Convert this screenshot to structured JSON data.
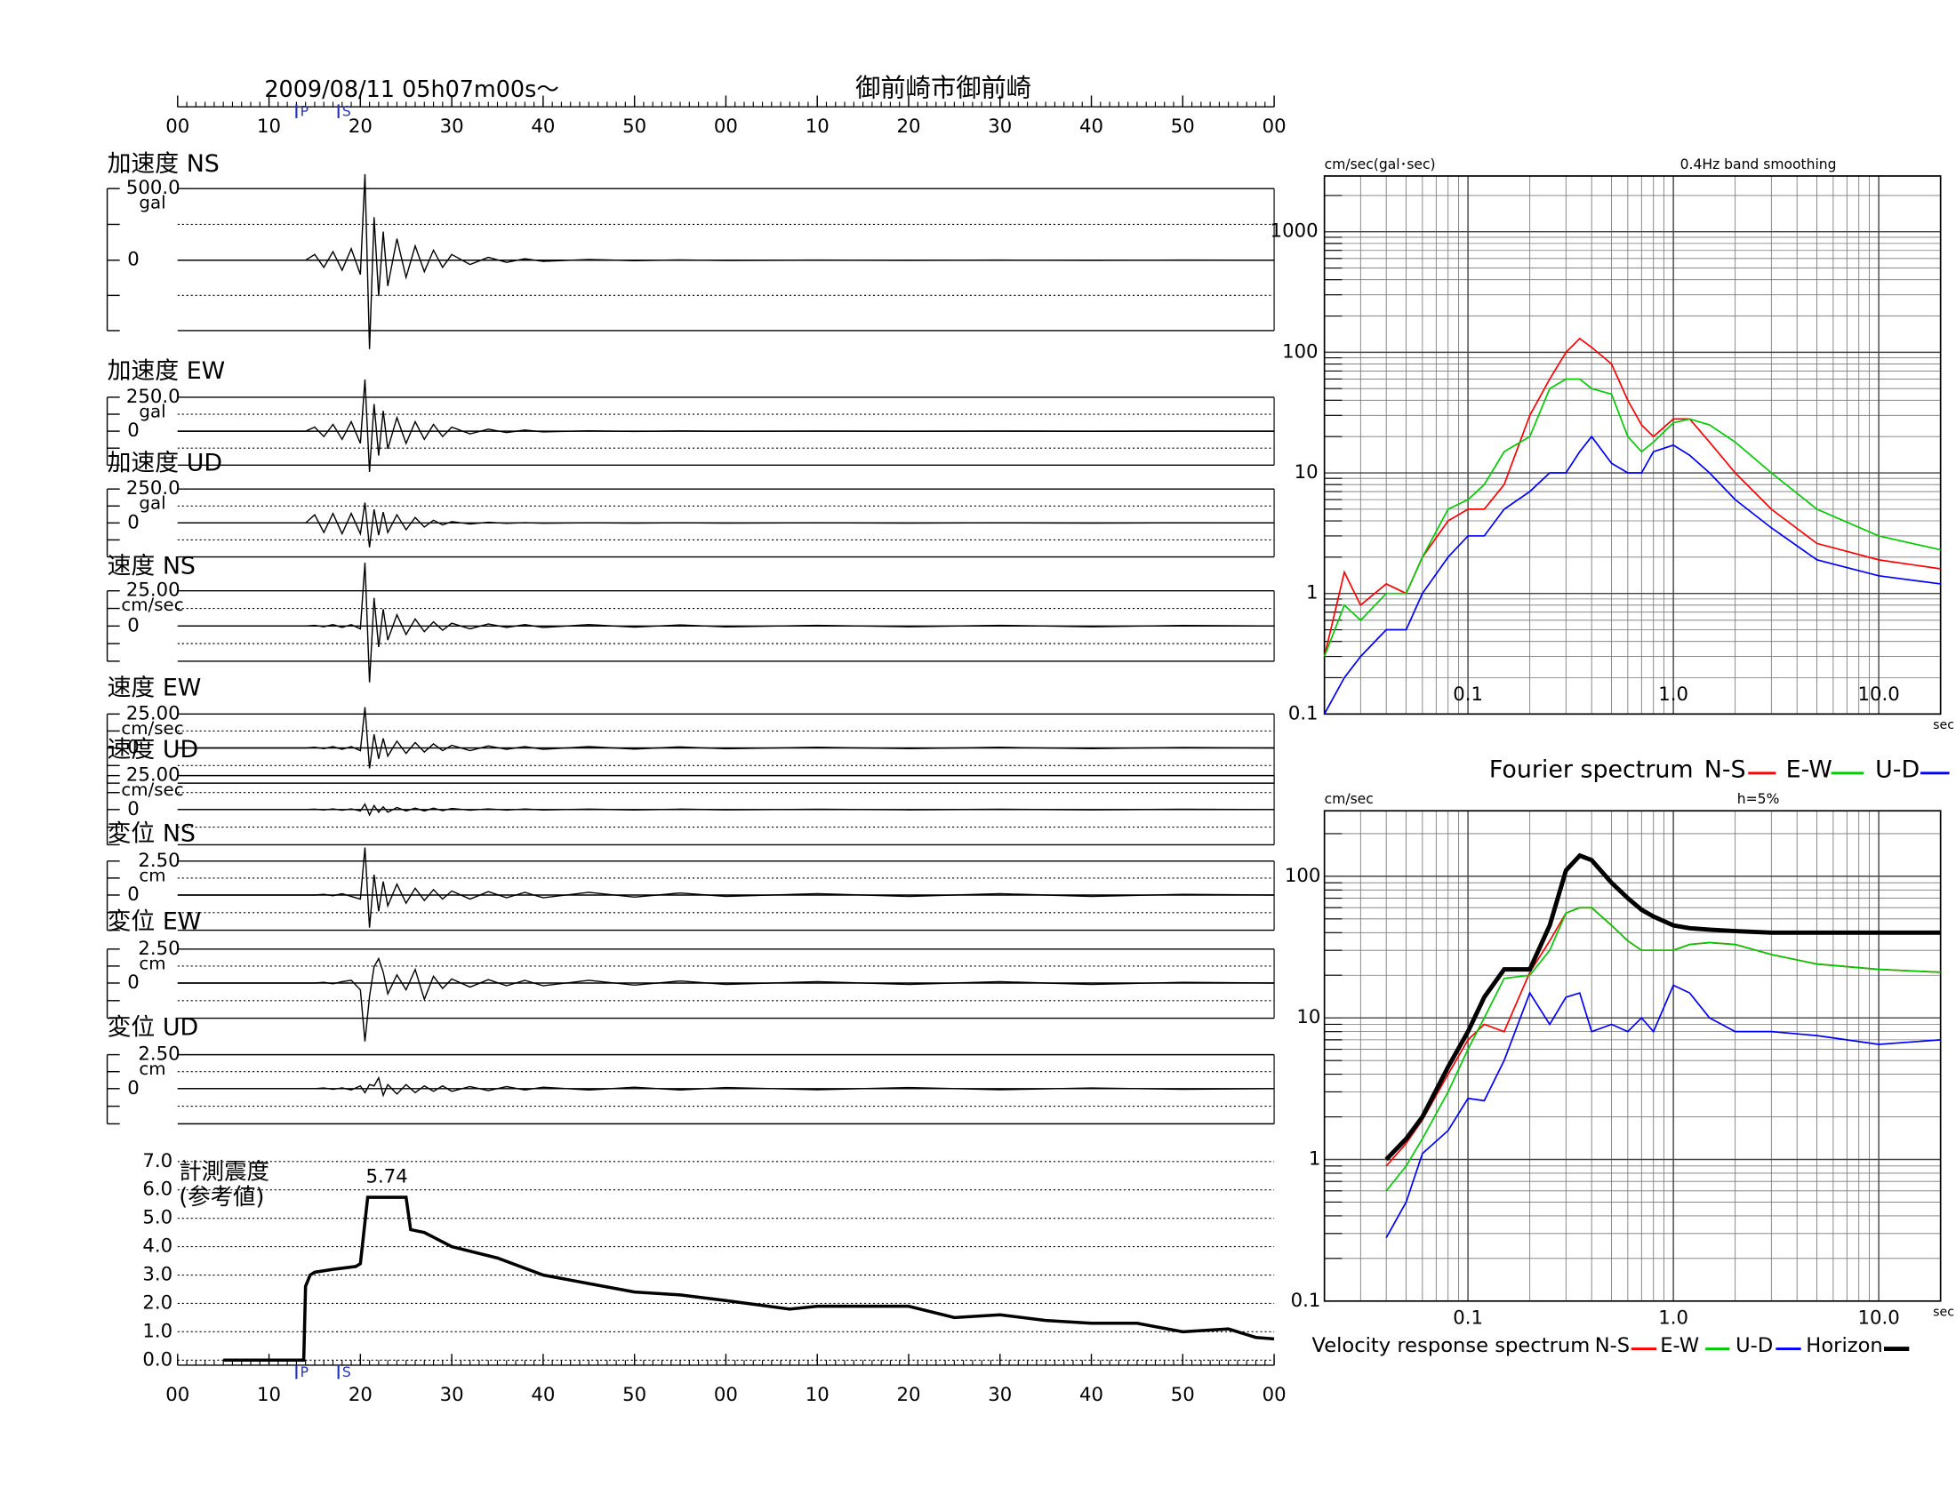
{
  "header": {
    "date": "2009/08/11  05h07m00s〜",
    "station": "御前崎市御前崎"
  },
  "chart_data": [
    {
      "type": "waveform",
      "xlim": [
        0,
        120
      ],
      "xticks": [
        {
          "value": 0,
          "label": "00"
        },
        {
          "value": 10,
          "label": "10"
        },
        {
          "value": 20,
          "label": "20"
        },
        {
          "value": 30,
          "label": "30"
        },
        {
          "value": 40,
          "label": "40"
        },
        {
          "value": 50,
          "label": "50"
        },
        {
          "value": 60,
          "label": "00"
        },
        {
          "value": 70,
          "label": "10"
        },
        {
          "value": 80,
          "label": "20"
        },
        {
          "value": 90,
          "label": "30"
        },
        {
          "value": 100,
          "label": "40"
        },
        {
          "value": 110,
          "label": "50"
        },
        {
          "value": 120,
          "label": "00"
        }
      ],
      "phases": [
        {
          "label": "P",
          "x": 13
        },
        {
          "label": "S",
          "x": 17.6
        }
      ],
      "phase_color": "#2030c0",
      "x": [
        0,
        14,
        15,
        16,
        17,
        18,
        19,
        20,
        20.5,
        21,
        21.5,
        22,
        22.5,
        23,
        24,
        25,
        26,
        27,
        28,
        29,
        30,
        32,
        34,
        36,
        38,
        40,
        45,
        50,
        55,
        60,
        70,
        80,
        90,
        100,
        110,
        120
      ],
      "series": [
        {
          "name": "加速度 NS",
          "unit": "gal",
          "color": "#000000",
          "ylim": [
            -500,
            500
          ],
          "yticks": [
            {
              "value": 500,
              "label": "500.0"
            },
            0
          ],
          "values": [
            0,
            0,
            40,
            -50,
            60,
            -70,
            80,
            -100,
            600,
            -620,
            300,
            -250,
            200,
            -180,
            150,
            -120,
            100,
            -80,
            70,
            -50,
            40,
            -30,
            20,
            -15,
            10,
            -8,
            5,
            -3,
            2,
            -2,
            1,
            -1,
            1,
            -1,
            1,
            0
          ]
        },
        {
          "name": "加速度 EW",
          "unit": "gal",
          "color": "#000000",
          "ylim": [
            -250,
            250
          ],
          "yticks": [
            {
              "value": 250,
              "label": "250.0"
            },
            0
          ],
          "values": [
            0,
            0,
            30,
            -40,
            50,
            -60,
            70,
            -90,
            380,
            -300,
            200,
            -180,
            150,
            -130,
            100,
            -90,
            70,
            -60,
            50,
            -40,
            30,
            -20,
            15,
            -10,
            8,
            -5,
            3,
            -2,
            2,
            -1,
            1,
            -1,
            1,
            -1,
            1,
            0
          ]
        },
        {
          "name": "加速度 UD",
          "unit": "gal",
          "color": "#000000",
          "ylim": [
            -250,
            250
          ],
          "yticks": [
            {
              "value": 250,
              "label": "250.0"
            },
            0
          ],
          "values": [
            0,
            0,
            60,
            -70,
            70,
            -80,
            70,
            -80,
            150,
            -180,
            100,
            -90,
            80,
            -70,
            60,
            -50,
            40,
            -30,
            20,
            -15,
            10,
            -8,
            5,
            -3,
            2,
            -2,
            1,
            -1,
            1,
            -1,
            1,
            -1,
            1,
            -1,
            1,
            0
          ]
        },
        {
          "name": "速度 NS",
          "unit": "cm/sec",
          "color": "#000000",
          "ylim": [
            -25,
            25
          ],
          "yticks": [
            {
              "value": 25,
              "label": "25.00"
            },
            0
          ],
          "values": [
            0,
            0,
            0.5,
            -0.5,
            1,
            -1,
            1,
            -2,
            45,
            -40,
            20,
            -15,
            12,
            -10,
            8,
            -6,
            5,
            -4,
            3,
            -3,
            2,
            -2,
            1.5,
            -1,
            1,
            -1,
            1,
            -0.8,
            0.8,
            -0.6,
            0.5,
            -0.5,
            0.5,
            -0.5,
            0.4,
            0
          ]
        },
        {
          "name": "速度 EW",
          "unit": "cm/sec",
          "color": "#000000",
          "ylim": [
            -25,
            25
          ],
          "yticks": [
            {
              "value": 25,
              "label": "25.00"
            },
            0
          ],
          "values": [
            0,
            0,
            0.5,
            -0.5,
            1,
            -1,
            1,
            -2,
            30,
            -15,
            10,
            -8,
            7,
            -6,
            5,
            -4,
            4,
            -3,
            3,
            -2,
            2,
            -2,
            1.5,
            -1,
            1,
            -1,
            1,
            -0.8,
            0.8,
            -0.6,
            0.5,
            -0.5,
            0.5,
            -0.5,
            0.4,
            0
          ]
        },
        {
          "name": "速度 UD",
          "unit": "cm/sec",
          "color": "#000000",
          "ylim": [
            -25,
            25
          ],
          "yticks": [
            {
              "value": 25,
              "label": "25.00"
            },
            0
          ],
          "values": [
            0,
            0,
            0.3,
            -0.3,
            0.5,
            -0.5,
            0.5,
            -1,
            4,
            -4,
            3,
            -2,
            2,
            -2,
            1.5,
            -1,
            1,
            -1,
            1,
            -0.8,
            0.8,
            -0.5,
            0.5,
            -0.4,
            0.4,
            -0.3,
            0.3,
            -0.3,
            0.3,
            -0.2,
            0.2,
            -0.2,
            0.2,
            -0.2,
            0.2,
            0
          ]
        },
        {
          "name": "変位 NS",
          "unit": "cm",
          "color": "#000000",
          "ylim": [
            -2.5,
            2.5
          ],
          "yticks": [
            {
              "value": 2.5,
              "label": "2.50"
            },
            0
          ],
          "values": [
            0,
            0,
            0,
            0.05,
            -0.05,
            0.1,
            -0.1,
            -0.3,
            3.5,
            -2.4,
            1.5,
            -1.2,
            1,
            -0.8,
            0.8,
            -0.6,
            0.5,
            -0.4,
            0.4,
            -0.3,
            0.3,
            -0.3,
            0.25,
            -0.2,
            0.2,
            -0.2,
            0.2,
            -0.15,
            0.15,
            -0.1,
            0.1,
            -0.1,
            0.1,
            -0.1,
            0.05,
            0
          ]
        },
        {
          "name": "変位 EW",
          "unit": "cm",
          "color": "#000000",
          "ylim": [
            -2.5,
            2.5
          ],
          "yticks": [
            {
              "value": 2.5,
              "label": "2.50"
            },
            0
          ],
          "values": [
            0,
            0,
            0,
            0.05,
            -0.05,
            0.1,
            0.2,
            -0.5,
            -4.3,
            -1,
            1.2,
            1.8,
            0.8,
            -0.8,
            0.6,
            -0.5,
            1,
            -1.2,
            0.5,
            -0.4,
            0.3,
            -0.3,
            0.25,
            -0.2,
            0.2,
            -0.2,
            0.2,
            -0.15,
            0.15,
            -0.1,
            0.1,
            -0.1,
            0.1,
            -0.1,
            0.05,
            0
          ]
        },
        {
          "name": "変位 UD",
          "unit": "cm",
          "color": "#000000",
          "ylim": [
            -2.5,
            2.5
          ],
          "yticks": [
            {
              "value": 2.5,
              "label": "2.50"
            },
            0
          ],
          "values": [
            0,
            0,
            0,
            0.05,
            -0.05,
            0.05,
            -0.1,
            0.2,
            -0.3,
            0.3,
            0.2,
            0.8,
            -0.5,
            0.3,
            -0.4,
            0.3,
            -0.3,
            0.2,
            -0.2,
            0.2,
            -0.2,
            0.15,
            -0.15,
            0.15,
            -0.1,
            0.1,
            -0.1,
            0.1,
            -0.1,
            0.08,
            -0.08,
            0.08,
            -0.08,
            0.05,
            -0.05,
            0
          ]
        }
      ]
    },
    {
      "type": "line",
      "title": "Fourier spectrum",
      "ylabel": "cm/sec(gal･sec)",
      "xlabel": "sec",
      "note": "0.4Hz band smoothing",
      "log_x": true,
      "log_y": true,
      "grid": true,
      "minor_grid": true,
      "xlim": [
        0.02,
        20
      ],
      "ylim": [
        0.1,
        2900
      ],
      "xticks": [
        0.1,
        {
          "value": 1,
          "label": "1.0"
        },
        {
          "value": 10,
          "label": "10.0"
        }
      ],
      "yticks": [
        0.1,
        1,
        10,
        100,
        1000
      ],
      "x": [
        0.02,
        0.025,
        0.03,
        0.04,
        0.05,
        0.06,
        0.08,
        0.1,
        0.12,
        0.15,
        0.2,
        0.25,
        0.3,
        0.35,
        0.4,
        0.5,
        0.6,
        0.7,
        0.8,
        1.0,
        1.2,
        1.5,
        2,
        3,
        5,
        10,
        20
      ],
      "series": [
        {
          "name": "N-S",
          "color": "#ff0000",
          "values": [
            0.3,
            1.5,
            0.8,
            1.2,
            1,
            2,
            4,
            5,
            5,
            8,
            30,
            60,
            100,
            130,
            110,
            80,
            40,
            25,
            20,
            28,
            28,
            18,
            10,
            5,
            2.6,
            1.9,
            1.6
          ]
        },
        {
          "name": "E-W",
          "color": "#00cc00",
          "values": [
            0.3,
            0.8,
            0.6,
            1,
            1,
            2,
            5,
            6,
            8,
            15,
            20,
            50,
            60,
            60,
            50,
            45,
            20,
            15,
            18,
            26,
            28,
            25,
            18,
            10,
            5,
            3,
            2.3
          ]
        },
        {
          "name": "U-D",
          "color": "#0000ff",
          "values": [
            0.1,
            0.2,
            0.3,
            0.5,
            0.5,
            1,
            2,
            3,
            3,
            5,
            7,
            10,
            10,
            15,
            20,
            12,
            10,
            10,
            15,
            17,
            14,
            10,
            6,
            3.5,
            1.9,
            1.4,
            1.2
          ]
        }
      ]
    },
    {
      "type": "line",
      "title": "Velocity response spectrum",
      "ylabel": "cm/sec",
      "xlabel": "sec",
      "note": "h=5%",
      "log_x": true,
      "log_y": true,
      "grid": true,
      "minor_grid": true,
      "xlim": [
        0.02,
        20
      ],
      "ylim": [
        0.1,
        290
      ],
      "xticks": [
        0.1,
        {
          "value": 1,
          "label": "1.0"
        },
        {
          "value": 10,
          "label": "10.0"
        }
      ],
      "yticks": [
        0.1,
        1,
        10,
        100
      ],
      "x": [
        0.04,
        0.05,
        0.06,
        0.08,
        0.1,
        0.12,
        0.15,
        0.2,
        0.25,
        0.3,
        0.35,
        0.4,
        0.5,
        0.6,
        0.7,
        0.8,
        1.0,
        1.2,
        1.5,
        2,
        3,
        5,
        10,
        20
      ],
      "series": [
        {
          "name": "N-S",
          "color": "#ff0000",
          "values": [
            0.9,
            1.3,
            1.9,
            4,
            7,
            9,
            8,
            21,
            35,
            55,
            60,
            60,
            45,
            35,
            30,
            30,
            30,
            33,
            34,
            33,
            28,
            24,
            22,
            21
          ]
        },
        {
          "name": "E-W",
          "color": "#00cc00",
          "values": [
            0.6,
            0.9,
            1.4,
            3,
            6,
            10,
            19,
            20,
            30,
            55,
            60,
            60,
            45,
            35,
            30,
            30,
            30,
            33,
            34,
            33,
            28,
            24,
            22,
            21
          ]
        },
        {
          "name": "U-D",
          "color": "#0000ff",
          "values": [
            0.28,
            0.5,
            1.1,
            1.6,
            2.7,
            2.6,
            5,
            15,
            9,
            14,
            15,
            8,
            9,
            8,
            10,
            8,
            17,
            15,
            10,
            8,
            8,
            7.5,
            6.5,
            7
          ]
        },
        {
          "name": "Horizon",
          "color": "#000000",
          "line_width": 3.5,
          "values": [
            1,
            1.4,
            2,
            4.5,
            8,
            14,
            22,
            22,
            45,
            110,
            140,
            130,
            90,
            70,
            58,
            52,
            45,
            43,
            42,
            41,
            40,
            40,
            40,
            40
          ]
        }
      ]
    },
    {
      "type": "step",
      "title": "計測震度",
      "subtitle": "(参考値)",
      "color": "#000000",
      "grid": true,
      "xlim": [
        0,
        120
      ],
      "ylim": [
        0,
        7
      ],
      "yticks": [
        {
          "value": 0,
          "label": "0.0"
        },
        {
          "value": 1,
          "label": "1.0"
        },
        {
          "value": 2,
          "label": "2.0"
        },
        {
          "value": 3,
          "label": "3.0"
        },
        {
          "value": 4,
          "label": "4.0"
        },
        {
          "value": 5,
          "label": "5.0"
        },
        {
          "value": 6,
          "label": "6.0"
        },
        {
          "value": 7,
          "label": "7.0"
        }
      ],
      "x": [
        5,
        13.8,
        14,
        14.5,
        15,
        17,
        19.5,
        20,
        20.8,
        25,
        25.5,
        27,
        30,
        35,
        40,
        45,
        50,
        55,
        60,
        67,
        70,
        80,
        85,
        90,
        95,
        100,
        105,
        110,
        115,
        118,
        120
      ],
      "values": [
        0,
        0,
        2.6,
        3,
        3.1,
        3.2,
        3.3,
        3.4,
        5.74,
        5.74,
        4.6,
        4.5,
        4.0,
        3.6,
        3.0,
        2.7,
        2.4,
        2.3,
        2.1,
        1.8,
        1.9,
        1.9,
        1.5,
        1.6,
        1.4,
        1.3,
        1.3,
        1.0,
        1.1,
        0.8,
        0.75
      ]
    }
  ]
}
